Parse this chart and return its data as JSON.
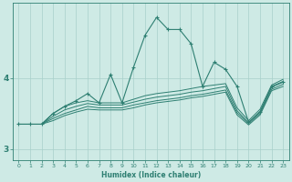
{
  "xlabel": "Humidex (Indice chaleur)",
  "x_values": [
    0,
    1,
    2,
    3,
    4,
    5,
    6,
    7,
    8,
    9,
    10,
    11,
    12,
    13,
    14,
    15,
    16,
    17,
    18,
    19,
    20,
    21,
    22,
    23
  ],
  "line_main": [
    3.35,
    3.35,
    3.35,
    3.5,
    3.6,
    3.68,
    3.78,
    3.65,
    4.05,
    3.65,
    4.15,
    4.6,
    4.85,
    4.68,
    4.68,
    4.48,
    3.88,
    4.22,
    4.12,
    3.88,
    3.38,
    3.52,
    3.88,
    3.95
  ],
  "line_upper": [
    3.35,
    3.35,
    3.35,
    3.5,
    3.6,
    3.65,
    3.68,
    3.65,
    3.65,
    3.65,
    3.7,
    3.75,
    3.78,
    3.8,
    3.82,
    3.85,
    3.88,
    3.9,
    3.92,
    3.58,
    3.4,
    3.56,
    3.9,
    3.98
  ],
  "line_mid_high": [
    3.35,
    3.35,
    3.35,
    3.46,
    3.55,
    3.6,
    3.64,
    3.62,
    3.62,
    3.62,
    3.66,
    3.7,
    3.73,
    3.75,
    3.77,
    3.8,
    3.82,
    3.85,
    3.88,
    3.54,
    3.37,
    3.53,
    3.87,
    3.94
  ],
  "line_mid_low": [
    3.35,
    3.35,
    3.35,
    3.43,
    3.5,
    3.55,
    3.6,
    3.58,
    3.58,
    3.58,
    3.62,
    3.65,
    3.68,
    3.7,
    3.72,
    3.75,
    3.77,
    3.8,
    3.83,
    3.51,
    3.36,
    3.5,
    3.84,
    3.91
  ],
  "line_lower": [
    3.35,
    3.35,
    3.35,
    3.4,
    3.47,
    3.52,
    3.56,
    3.55,
    3.55,
    3.55,
    3.58,
    3.62,
    3.65,
    3.67,
    3.69,
    3.72,
    3.74,
    3.77,
    3.8,
    3.48,
    3.34,
    3.48,
    3.82,
    3.88
  ],
  "color": "#2e7f72",
  "bg_color": "#ceeae5",
  "grid_color": "#a8d0ca",
  "ylim": [
    2.85,
    5.05
  ],
  "yticks": [
    3,
    4
  ],
  "xticks": [
    0,
    1,
    2,
    3,
    4,
    5,
    6,
    7,
    8,
    9,
    10,
    11,
    12,
    13,
    14,
    15,
    16,
    17,
    18,
    19,
    20,
    21,
    22,
    23
  ],
  "figsize": [
    3.2,
    2.0
  ],
  "dpi": 100
}
